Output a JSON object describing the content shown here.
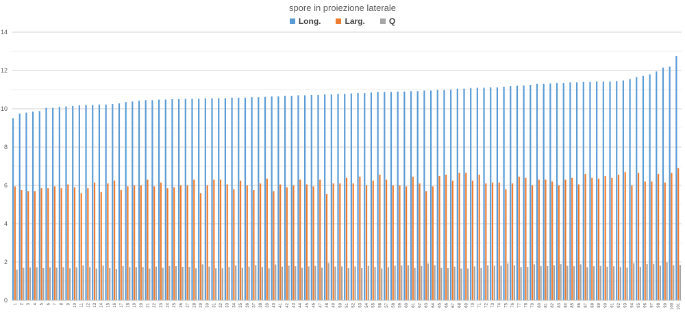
{
  "chart_data": {
    "type": "bar",
    "title": "spore in proiezione laterale",
    "xlabel": "",
    "ylabel": "",
    "ylim": [
      0,
      14
    ],
    "yticks": [
      0,
      2,
      4,
      6,
      8,
      10,
      12,
      14
    ],
    "grid": true,
    "legend_position": "top",
    "categories": [
      "1",
      "2",
      "3",
      "4",
      "5",
      "6",
      "7",
      "8",
      "9",
      "10",
      "11",
      "12",
      "13",
      "14",
      "15",
      "16",
      "17",
      "18",
      "19",
      "20",
      "21",
      "22",
      "23",
      "24",
      "25",
      "26",
      "27",
      "28",
      "29",
      "30",
      "31",
      "32",
      "33",
      "34",
      "35",
      "36",
      "37",
      "38",
      "39",
      "40",
      "41",
      "42",
      "43",
      "44",
      "45",
      "46",
      "47",
      "48",
      "49",
      "50",
      "51",
      "52",
      "53",
      "54",
      "55",
      "56",
      "57",
      "58",
      "59",
      "60",
      "61",
      "62",
      "63",
      "64",
      "65",
      "66",
      "67",
      "68",
      "69",
      "70",
      "71",
      "72",
      "73",
      "74",
      "75",
      "76",
      "77",
      "78",
      "79",
      "80",
      "81",
      "82",
      "83",
      "84",
      "85",
      "86",
      "87",
      "88",
      "89",
      "90",
      "91",
      "92",
      "93",
      "94",
      "95",
      "96",
      "97",
      "98",
      "99",
      "100",
      "101"
    ],
    "series": [
      {
        "name": "Long.",
        "color": "#5b9bd5",
        "values": [
          9.5,
          9.75,
          9.8,
          9.85,
          9.88,
          10.05,
          10.05,
          10.1,
          10.12,
          10.15,
          10.18,
          10.2,
          10.2,
          10.22,
          10.22,
          10.25,
          10.28,
          10.35,
          10.38,
          10.42,
          10.45,
          10.45,
          10.48,
          10.48,
          10.5,
          10.5,
          10.52,
          10.52,
          10.52,
          10.55,
          10.55,
          10.55,
          10.55,
          10.58,
          10.58,
          10.58,
          10.6,
          10.6,
          10.62,
          10.65,
          10.65,
          10.68,
          10.68,
          10.7,
          10.7,
          10.72,
          10.72,
          10.75,
          10.75,
          10.78,
          10.78,
          10.8,
          10.82,
          10.82,
          10.85,
          10.88,
          10.88,
          10.88,
          10.9,
          10.9,
          10.92,
          10.92,
          10.95,
          10.95,
          10.98,
          10.98,
          11.0,
          11.05,
          11.05,
          11.08,
          11.1,
          11.1,
          11.12,
          11.12,
          11.15,
          11.18,
          11.2,
          11.22,
          11.25,
          11.3,
          11.3,
          11.32,
          11.35,
          11.35,
          11.38,
          11.38,
          11.4,
          11.4,
          11.42,
          11.42,
          11.42,
          11.45,
          11.48,
          11.55,
          11.65,
          11.72,
          11.8,
          11.95,
          12.15,
          12.2,
          12.75
        ]
      },
      {
        "name": "Larg.",
        "color": "#ed7d31",
        "values": [
          5.95,
          5.75,
          5.7,
          5.7,
          5.85,
          5.85,
          5.95,
          5.85,
          6.05,
          5.9,
          5.6,
          5.85,
          6.15,
          5.65,
          6.1,
          6.25,
          5.75,
          5.95,
          6.0,
          6.0,
          6.3,
          5.95,
          6.15,
          5.85,
          5.9,
          6.0,
          6.0,
          6.3,
          5.6,
          6.0,
          6.3,
          6.3,
          6.05,
          5.8,
          6.25,
          6.0,
          5.75,
          6.1,
          6.35,
          5.7,
          6.05,
          5.9,
          6.0,
          6.3,
          6.05,
          5.95,
          6.3,
          5.55,
          6.1,
          6.1,
          6.4,
          6.1,
          6.45,
          6.0,
          6.25,
          6.55,
          6.3,
          6.0,
          6.0,
          5.95,
          6.45,
          6.1,
          5.7,
          5.95,
          6.5,
          6.55,
          6.25,
          6.65,
          6.65,
          6.25,
          6.55,
          6.1,
          6.15,
          6.15,
          5.8,
          6.1,
          6.45,
          6.4,
          6.0,
          6.3,
          6.3,
          6.2,
          6.0,
          6.3,
          6.4,
          6.05,
          6.6,
          6.4,
          6.35,
          6.5,
          6.4,
          6.55,
          6.7,
          6.0,
          6.65,
          6.2,
          6.2,
          6.6,
          6.15,
          6.65,
          6.9
        ]
      },
      {
        "name": "Q",
        "color": "#a5a5a5",
        "values": [
          1.6,
          1.7,
          1.72,
          1.72,
          1.68,
          1.72,
          1.7,
          1.73,
          1.67,
          1.72,
          1.82,
          1.74,
          1.66,
          1.81,
          1.68,
          1.64,
          1.79,
          1.74,
          1.73,
          1.74,
          1.66,
          1.76,
          1.7,
          1.79,
          1.78,
          1.75,
          1.75,
          1.67,
          1.88,
          1.76,
          1.67,
          1.67,
          1.74,
          1.82,
          1.7,
          1.76,
          1.84,
          1.74,
          1.67,
          1.87,
          1.76,
          1.81,
          1.78,
          1.7,
          1.77,
          1.8,
          1.7,
          1.94,
          1.76,
          1.77,
          1.68,
          1.77,
          1.68,
          1.8,
          1.74,
          1.66,
          1.73,
          1.81,
          1.82,
          1.83,
          1.69,
          1.79,
          1.92,
          1.84,
          1.69,
          1.68,
          1.76,
          1.66,
          1.66,
          1.77,
          1.69,
          1.82,
          1.81,
          1.81,
          1.92,
          1.83,
          1.74,
          1.75,
          1.88,
          1.79,
          1.79,
          1.83,
          1.89,
          1.8,
          1.78,
          1.88,
          1.73,
          1.78,
          1.8,
          1.76,
          1.78,
          1.74,
          1.71,
          1.93,
          1.75,
          1.89,
          1.9,
          1.81,
          1.98,
          1.83,
          1.85
        ]
      }
    ]
  }
}
